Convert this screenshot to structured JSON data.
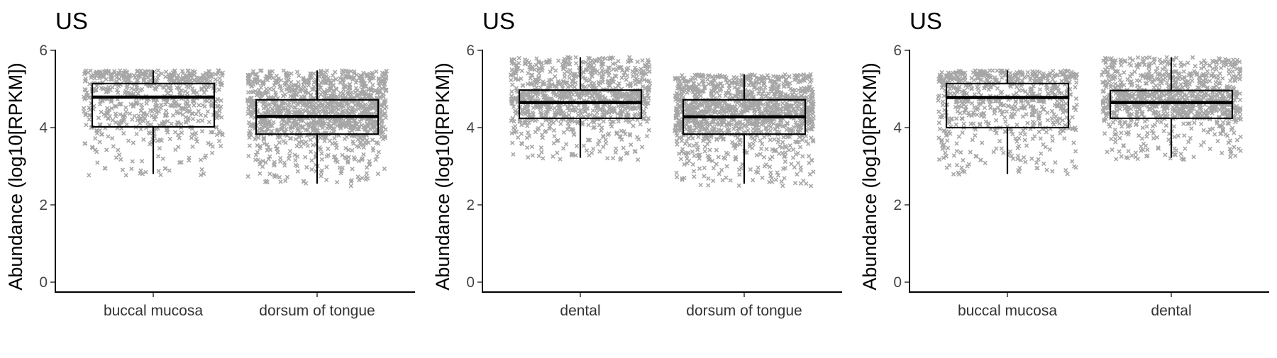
{
  "chart_data": [
    {
      "type": "box",
      "title": "US",
      "ylabel": "Abundance (log10[RPKM])",
      "xlabel": "",
      "ylim": [
        0,
        6
      ],
      "yticks": [
        0,
        2,
        4,
        6
      ],
      "grid": false,
      "point_color": "#a6a6a6",
      "categories": [
        "buccal mucosa",
        "dorsum of tongue"
      ],
      "boxes": [
        {
          "name": "buccal mucosa",
          "q1": 4.02,
          "median": 4.79,
          "q3": 5.14,
          "whisker_low": 2.8,
          "whisker_high": 5.48,
          "point_count": 700
        },
        {
          "name": "dorsum of tongue",
          "q1": 3.83,
          "median": 4.29,
          "q3": 4.72,
          "whisker_low": 2.55,
          "whisker_high": 5.48,
          "point_count": 1300
        }
      ]
    },
    {
      "type": "box",
      "title": "US",
      "ylabel": "Abundance (log10[RPKM])",
      "xlabel": "",
      "ylim": [
        0,
        6
      ],
      "yticks": [
        0,
        2,
        4,
        6
      ],
      "grid": false,
      "point_color": "#a6a6a6",
      "categories": [
        "dental",
        "dorsum of tongue"
      ],
      "boxes": [
        {
          "name": "dental",
          "q1": 4.24,
          "median": 4.65,
          "q3": 4.97,
          "whisker_low": 3.22,
          "whisker_high": 5.82,
          "point_count": 1000
        },
        {
          "name": "dorsum of tongue",
          "q1": 3.83,
          "median": 4.28,
          "q3": 4.72,
          "whisker_low": 2.55,
          "whisker_high": 5.38,
          "point_count": 1300
        }
      ]
    },
    {
      "type": "box",
      "title": "US",
      "ylabel": "Abundance (log10[RPKM])",
      "xlabel": "",
      "ylim": [
        0,
        6
      ],
      "yticks": [
        0,
        2,
        4,
        6
      ],
      "grid": false,
      "point_color": "#a6a6a6",
      "categories": [
        "buccal mucosa",
        "dental"
      ],
      "boxes": [
        {
          "name": "buccal mucosa",
          "q1": 4.0,
          "median": 4.78,
          "q3": 5.14,
          "whisker_low": 2.8,
          "whisker_high": 5.48,
          "point_count": 700
        },
        {
          "name": "dental",
          "q1": 4.24,
          "median": 4.65,
          "q3": 4.96,
          "whisker_low": 3.22,
          "whisker_high": 5.82,
          "point_count": 1000
        }
      ]
    }
  ]
}
